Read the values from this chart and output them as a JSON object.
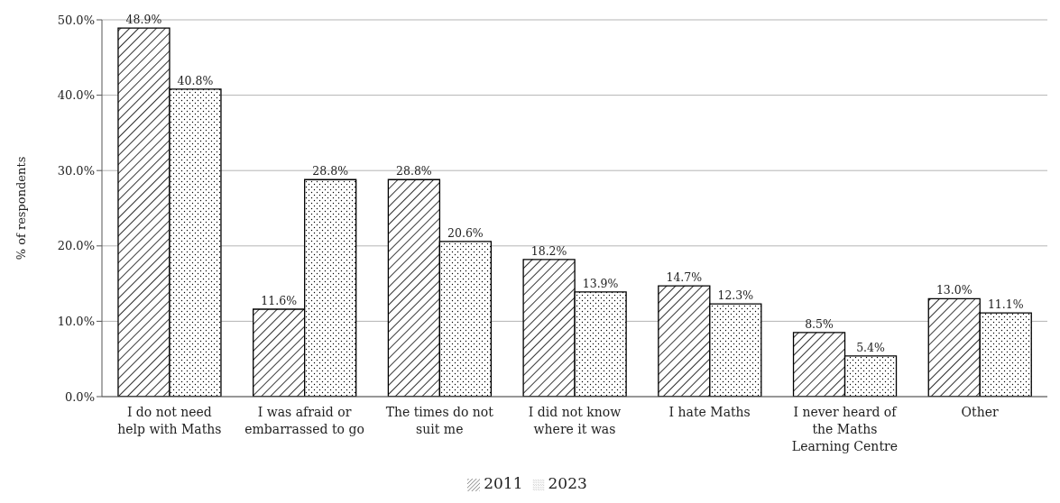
{
  "chart_data": {
    "type": "bar",
    "ylabel": "% of respondents",
    "categories": [
      "I do not need help with Maths",
      "I was afraid or embarrassed to go",
      "The times do not suit me",
      "I did not know where it was",
      "I hate Maths",
      "I never heard of the Maths Learning Centre",
      "Other"
    ],
    "series": [
      {
        "name": "2011",
        "color": "#000000",
        "values": [
          48.9,
          11.6,
          28.8,
          18.2,
          14.7,
          8.5,
          13.0
        ],
        "value_labels": [
          "48.9%",
          "11.6%",
          "28.8%",
          "18.2%",
          "14.7%",
          "8.5%",
          "13.0%"
        ]
      },
      {
        "name": "2023",
        "color": "#000000",
        "values": [
          40.8,
          28.8,
          20.6,
          13.9,
          12.3,
          5.4,
          11.1
        ],
        "value_labels": [
          "40.8%",
          "28.8%",
          "20.6%",
          "13.9%",
          "12.3%",
          "5.4%",
          "11.1%"
        ]
      }
    ],
    "ylim": [
      0,
      50
    ],
    "yticks": [
      {
        "value": 0,
        "label": "0.0%"
      },
      {
        "value": 10,
        "label": "10.0%"
      },
      {
        "value": 20,
        "label": "20.0%"
      },
      {
        "value": 30,
        "label": "30.0%"
      },
      {
        "value": 40,
        "label": "40.0%"
      },
      {
        "value": 50,
        "label": "50.0%"
      }
    ],
    "grid": "y",
    "legend": "bottom"
  }
}
